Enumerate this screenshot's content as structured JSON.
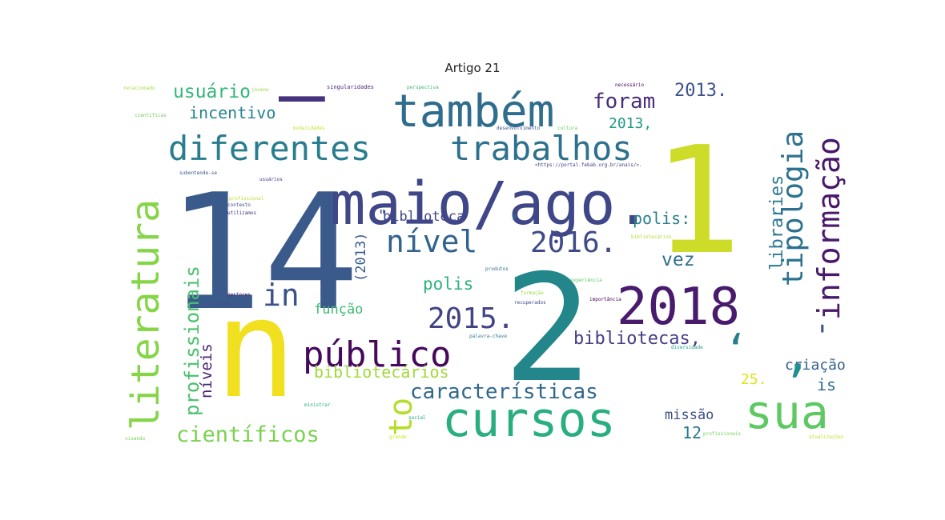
{
  "figure": {
    "title": "Artigo 21"
  },
  "word_cloud": {
    "words": [
      {
        "text": "14",
        "color": "#3b5a8c"
      },
      {
        "text": "n",
        "color": "#f0e020"
      },
      {
        "text": "2",
        "color": "#22868a"
      },
      {
        "text": "1",
        "color": "#cddc28"
      },
      {
        "text": "maio/ago.",
        "color": "#404788"
      },
      {
        "text": "também",
        "color": "#2f6d8e"
      },
      {
        "text": "cursos",
        "color": "#29af7f"
      },
      {
        "text": "literatura",
        "color": "#86d549"
      },
      {
        "text": "diferentes",
        "color": "#287d8e"
      },
      {
        "text": "trabalhos",
        "color": "#2d718e"
      },
      {
        "text": "2018",
        "color": "#481b6d"
      },
      {
        "text": "sua",
        "color": "#5ec962"
      },
      {
        "text": "público",
        "color": "#46085c"
      },
      {
        "text": "informação",
        "color": "#48186a"
      },
      {
        "text": "tipologia",
        "color": "#2c728e"
      },
      {
        "text": "nível",
        "color": "#33638d"
      },
      {
        "text": "2016.",
        "color": "#3e4a89"
      },
      {
        "text": "2015.",
        "color": "#414487"
      },
      {
        "text": "in",
        "color": "#3b528b"
      },
      {
        "text": "to",
        "color": "#b5de2b"
      },
      {
        "text": "profissionais",
        "color": "#4ac16d"
      },
      {
        "text": "características",
        "color": "#31688e"
      },
      {
        "text": "científicos",
        "color": "#7ad151"
      },
      {
        "text": "usuário",
        "color": "#35b779"
      },
      {
        "text": "incentivo",
        "color": "#26828e"
      },
      {
        "text": "foram",
        "color": "#472c7a"
      },
      {
        "text": "2013.",
        "color": "#3b528b"
      },
      {
        "text": "2013,",
        "color": "#1f9a8a"
      },
      {
        "text": "libraries",
        "color": "#2a778e"
      },
      {
        "text": "bibliotecas,",
        "color": "#433e85"
      },
      {
        "text": "bibliotecários",
        "color": "#a0da39"
      },
      {
        "text": "biblioteca",
        "color": "#404688"
      },
      {
        "text": "(2013)",
        "color": "#375a8c"
      },
      {
        "text": "vez",
        "color": "#2d6f8e"
      },
      {
        "text": "polis:",
        "color": "#27808e"
      },
      {
        "text": "polis",
        "color": "#2db27d"
      },
      {
        "text": "função",
        "color": "#3fbc73"
      },
      {
        "text": "níveis",
        "color": "#482475"
      },
      {
        "text": "criação",
        "color": "#355f8d"
      },
      {
        "text": "missão",
        "color": "#3c4f8a"
      },
      {
        "text": "is",
        "color": "#30698e"
      },
      {
        "text": "12",
        "color": "#2a788e"
      },
      {
        "text": "25.",
        "color": "#dde318"
      },
      {
        "text": "–",
        "color": "#46337e"
      },
      {
        "text": "‘",
        "color": "#277f8e"
      },
      {
        "text": "’",
        "color": "#21908d"
      },
      {
        "text": ",",
        "color": "#31688e"
      },
      {
        "text": "'",
        "color": "#39568c"
      },
      {
        "text": "\"",
        "color": "#3e4c8a"
      },
      {
        "text": "relacionado",
        "color": "#9fda3a"
      },
      {
        "text": "jovens",
        "color": "#90d743"
      },
      {
        "text": "singularidades",
        "color": "#482777"
      },
      {
        "text": "perspectiva",
        "color": "#38b977"
      },
      {
        "text": "necessário",
        "color": "#450559"
      },
      {
        "text": "científicas",
        "color": "#6ccd5a"
      },
      {
        "text": "modalidades",
        "color": "#c0df25"
      },
      {
        "text": "desenvolvimento",
        "color": "#3b518b"
      },
      {
        "text": "cultura",
        "color": "#6ece58"
      },
      {
        "text": "subentende-se",
        "color": "#3a548c"
      },
      {
        "text": "usuários",
        "color": "#443983"
      },
      {
        "text": "<https://portal.febab.org.br/anais/>.",
        "color": "#433d84"
      },
      {
        "text": "profissional",
        "color": "#b8de29"
      },
      {
        "text": "contexto",
        "color": "#3c508b"
      },
      {
        "text": "utilizamos",
        "color": "#46307e"
      },
      {
        "text": "bibliotecários.",
        "color": "#addc30"
      },
      {
        "text": "produtos",
        "color": "#2e6e8e"
      },
      {
        "text": "formação",
        "color": "#9bd93c"
      },
      {
        "text": "recuperados",
        "color": "#3e4989"
      },
      {
        "text": "importância",
        "color": "#440154"
      },
      {
        "text": "experiência",
        "color": "#5cc863"
      },
      {
        "text": "palavra-chave",
        "color": "#29798e"
      },
      {
        "text": "diversidade",
        "color": "#20a386"
      },
      {
        "text": "profissionais",
        "color": "#75d054"
      },
      {
        "text": "ministrar",
        "color": "#27ad81"
      },
      {
        "text": "gestores",
        "color": "#482979"
      },
      {
        "text": "unidades",
        "color": "#3d4e8a"
      },
      {
        "text": "grande",
        "color": "#d2e21b"
      },
      {
        "text": "social",
        "color": "#1e9c89"
      },
      {
        "text": "visando",
        "color": "#73d056"
      },
      {
        "text": "atualizações",
        "color": "#bddf26"
      }
    ]
  }
}
